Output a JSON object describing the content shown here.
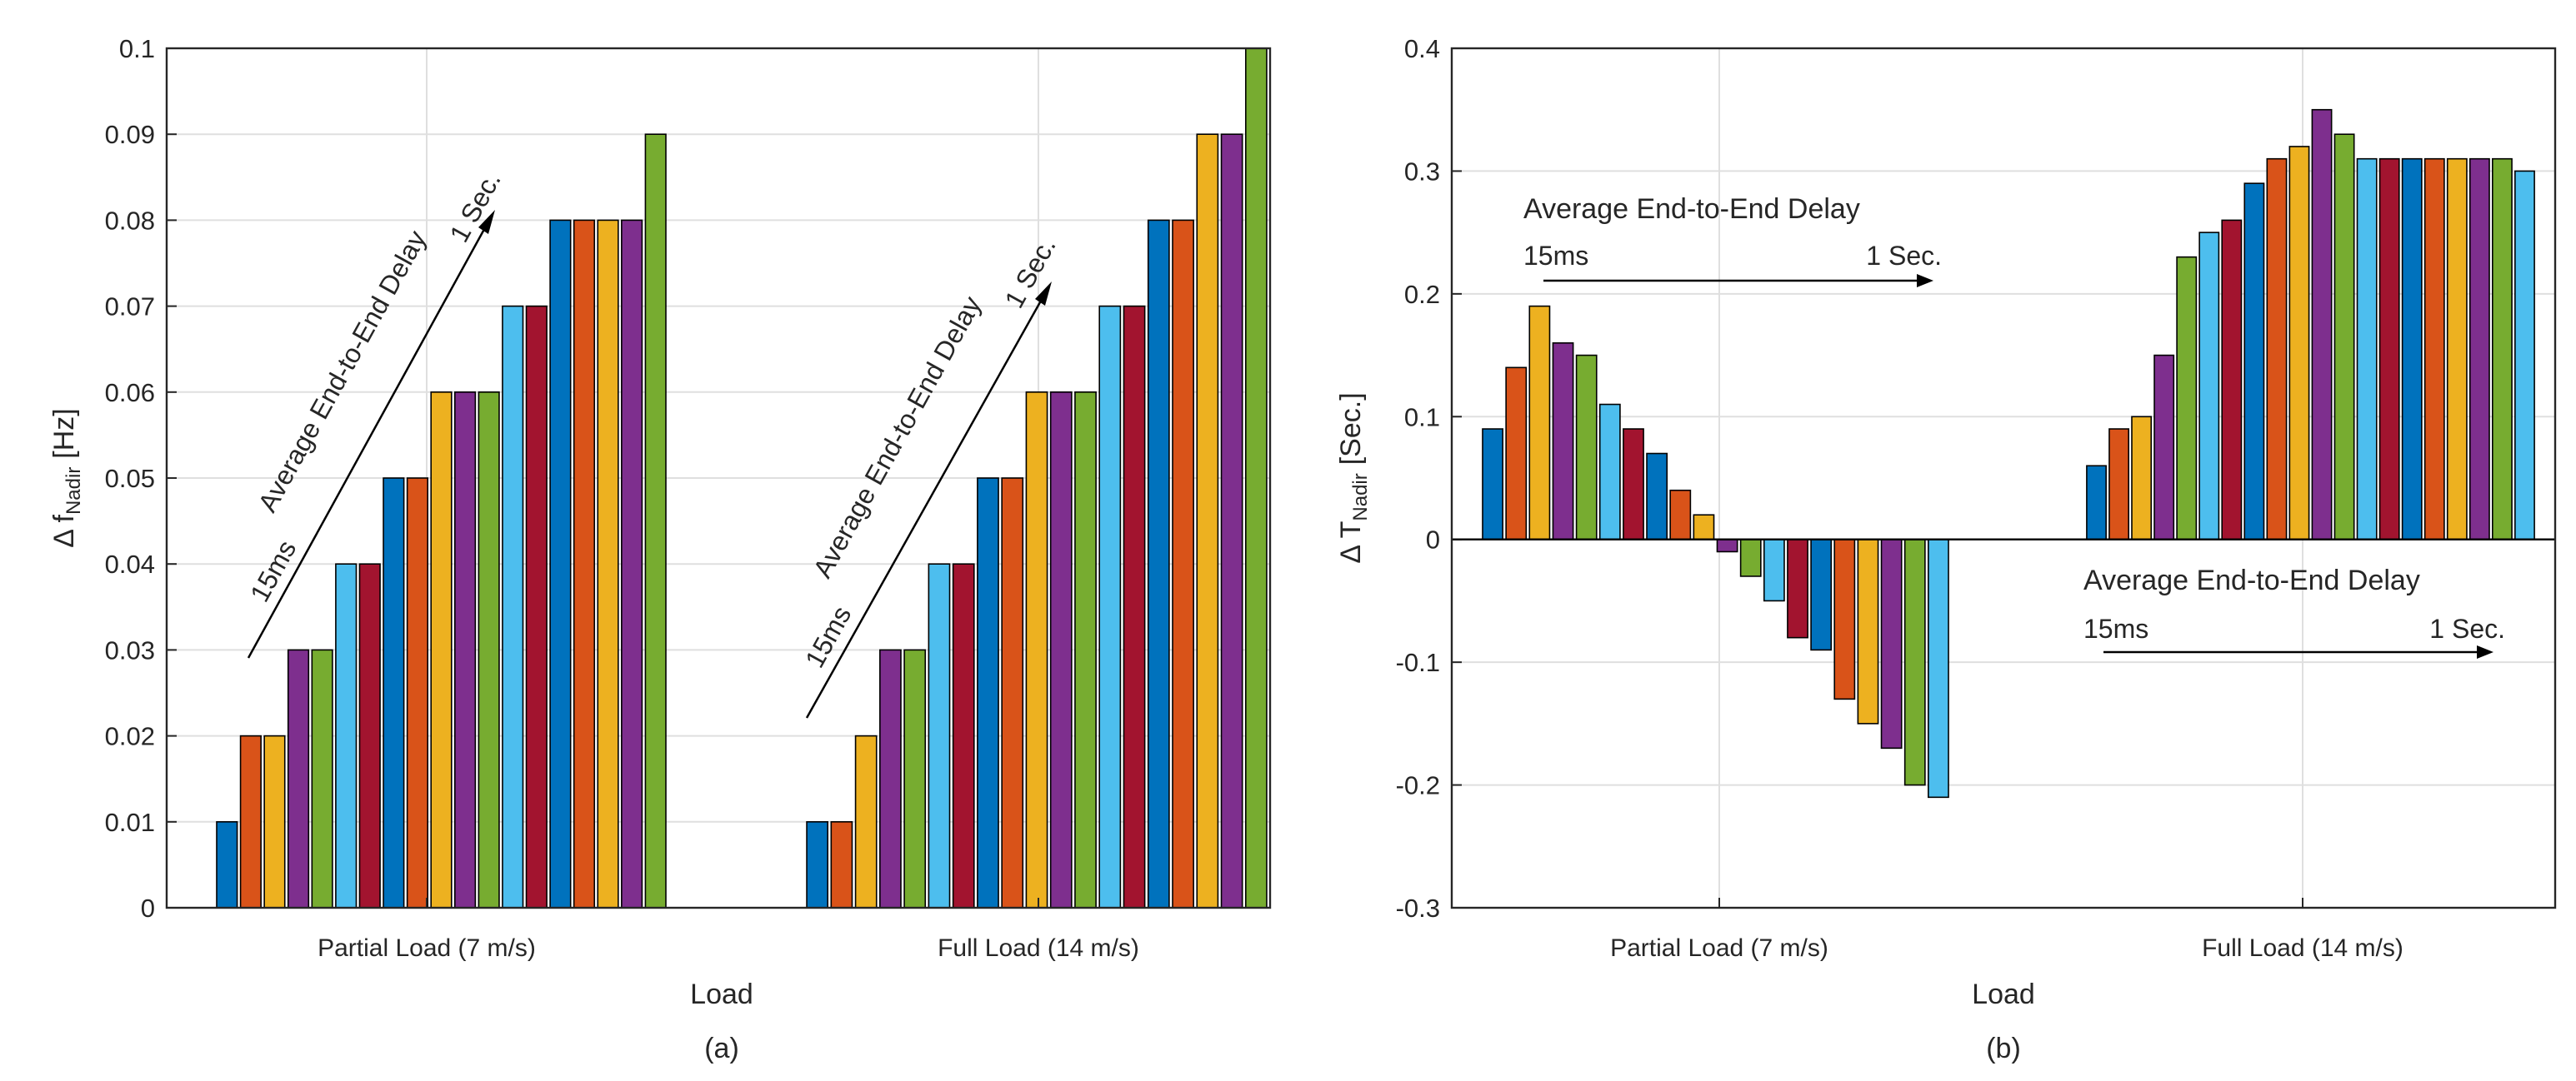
{
  "chart_data": [
    {
      "id": "a",
      "type": "bar",
      "panel_caption": "(a)",
      "xlabel": "Load",
      "ylabel_main": "Δ f",
      "ylabel_sub": "Nadir",
      "ylabel_unit": "[Hz]",
      "ylim": [
        0,
        0.1
      ],
      "yticks": [
        "0",
        "0.01",
        "0.02",
        "0.03",
        "0.04",
        "0.05",
        "0.06",
        "0.07",
        "0.08",
        "0.09",
        "0.1"
      ],
      "grid": true,
      "categories": [
        "Partial Load (7 m/s)",
        "Full Load (14 m/s)"
      ],
      "groups": [
        [
          0.01,
          0.02,
          0.02,
          0.03,
          0.03,
          0.04,
          0.04,
          0.05,
          0.05,
          0.06,
          0.06,
          0.06,
          0.07,
          0.07,
          0.08,
          0.08,
          0.08,
          0.08,
          0.09
        ],
        [
          0.01,
          0.01,
          0.02,
          0.03,
          0.03,
          0.04,
          0.04,
          0.05,
          0.05,
          0.06,
          0.06,
          0.06,
          0.07,
          0.07,
          0.08,
          0.08,
          0.09,
          0.09,
          0.1
        ]
      ],
      "annotations": [
        {
          "title": "Average End-to-End Delay",
          "start": "15ms",
          "end": "1 Sec."
        },
        {
          "title": "Average End-to-End Delay",
          "start": "15ms",
          "end": "1 Sec."
        }
      ]
    },
    {
      "id": "b",
      "type": "bar",
      "panel_caption": "(b)",
      "xlabel": "Load",
      "ylabel_main": "Δ T",
      "ylabel_sub": "Nadir",
      "ylabel_unit": "[Sec.]",
      "ylim": [
        -0.3,
        0.4
      ],
      "yticks": [
        "-0.3",
        "-0.2",
        "-0.1",
        "0",
        "0.1",
        "0.2",
        "0.3",
        "0.4"
      ],
      "grid": true,
      "categories": [
        "Partial Load (7 m/s)",
        "Full Load (14 m/s)"
      ],
      "groups": [
        [
          0.09,
          0.14,
          0.19,
          0.16,
          0.15,
          0.11,
          0.09,
          0.07,
          0.04,
          0.02,
          -0.01,
          -0.03,
          -0.05,
          -0.08,
          -0.09,
          -0.13,
          -0.15,
          -0.17,
          -0.2,
          -0.21
        ],
        [
          0.06,
          0.09,
          0.1,
          0.15,
          0.23,
          0.25,
          0.26,
          0.29,
          0.31,
          0.32,
          0.35,
          0.33,
          0.31,
          0.31,
          0.31,
          0.31,
          0.31,
          0.31,
          0.31,
          0.3
        ]
      ],
      "annotations": [
        {
          "title": "Average End-to-End Delay",
          "start": "15ms",
          "end": "1 Sec."
        },
        {
          "title": "Average End-to-End Delay",
          "start": "15ms",
          "end": "1 Sec."
        }
      ]
    }
  ],
  "colors": {
    "series": [
      "#0072BD",
      "#D95319",
      "#EDB120",
      "#7E2F8E",
      "#77AC30",
      "#4DBEEE",
      "#A2142F"
    ],
    "grid": "#DFDFDF",
    "axis": "#262626",
    "arrow": "#000000"
  }
}
